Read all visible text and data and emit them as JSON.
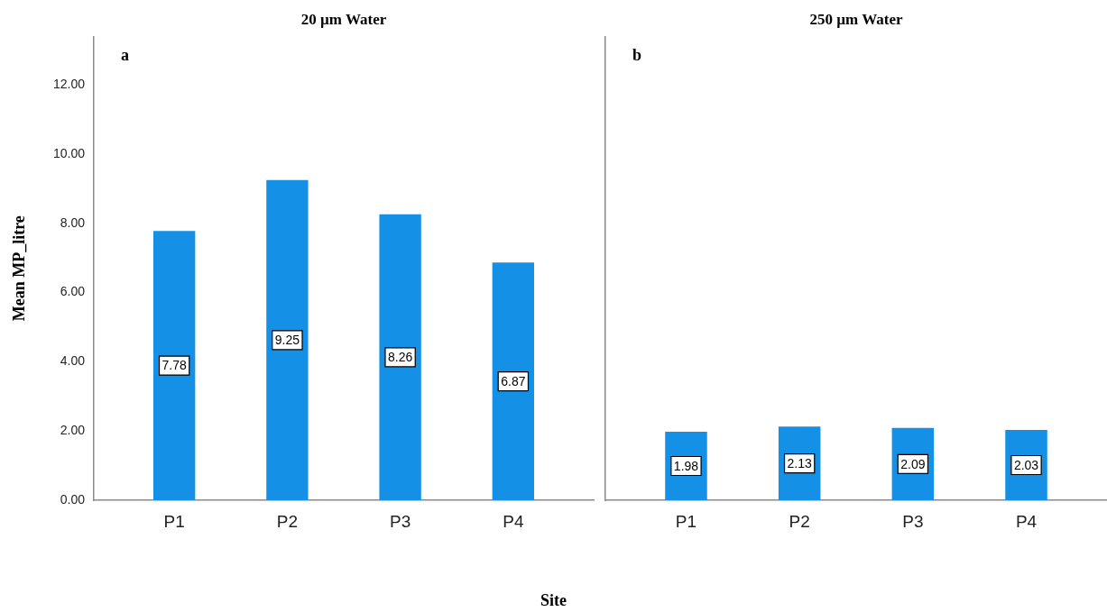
{
  "chart_data": [
    {
      "type": "bar",
      "title": "20 µm Water",
      "ylabel": "Mean MP_litre",
      "xlabel": "Site",
      "categories": [
        "P1",
        "P2",
        "P3",
        "P4"
      ],
      "values": [
        7.78,
        9.25,
        8.26,
        6.87
      ],
      "color": "#1490e6",
      "ylim": [
        0,
        13.4
      ],
      "yticks": [
        {
          "value": 0,
          "label": "0.00"
        },
        {
          "value": 2,
          "label": "2.00"
        },
        {
          "value": 4,
          "label": "4.00"
        },
        {
          "value": 6,
          "label": "6.00"
        },
        {
          "value": 8,
          "label": "8.00"
        },
        {
          "value": 10,
          "label": "10.00"
        },
        {
          "value": 12,
          "label": "12.00"
        }
      ],
      "data_labels": true,
      "annotations": [
        "a"
      ]
    },
    {
      "type": "bar",
      "title": "250 µm Water",
      "categories": [
        "P1",
        "P2",
        "P3",
        "P4"
      ],
      "values": [
        1.98,
        2.13,
        2.09,
        2.03
      ],
      "color": "#1490e6",
      "ylim": [
        0,
        13.4
      ],
      "tick_labels": "x",
      "data_labels": true,
      "annotations": [
        "b"
      ]
    }
  ]
}
